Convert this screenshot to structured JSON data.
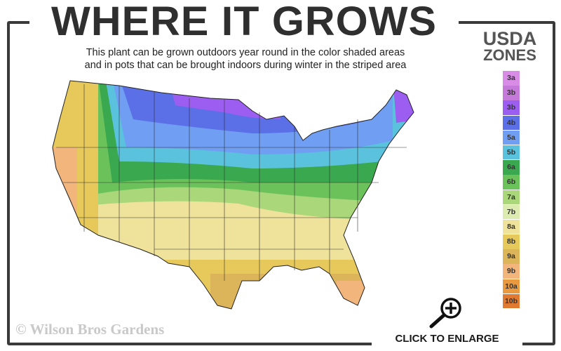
{
  "header": {
    "title": "WHERE IT GROWS",
    "subtitle_line1": "This plant can be grown outdoors year round in the color shaded areas",
    "subtitle_line2": "and in pots that can be brought indoors during winter in the striped area"
  },
  "legend": {
    "title_line1": "USDA",
    "title_line2": "ZONES",
    "zones": [
      {
        "label": "3a",
        "color": "#d98ce6"
      },
      {
        "label": "3b",
        "color": "#c57ad9"
      },
      {
        "label": "3b",
        "color": "#9b5ef0"
      },
      {
        "label": "4b",
        "color": "#5b6fe6"
      },
      {
        "label": "5a",
        "color": "#6f9ef2"
      },
      {
        "label": "5b",
        "color": "#5bc2de"
      },
      {
        "label": "6a",
        "color": "#3aa84e"
      },
      {
        "label": "6b",
        "color": "#6cc25a"
      },
      {
        "label": "7a",
        "color": "#a9d77a"
      },
      {
        "label": "7b",
        "color": "#dcebb0"
      },
      {
        "label": "8a",
        "color": "#efe29a"
      },
      {
        "label": "8b",
        "color": "#e6c95a"
      },
      {
        "label": "9a",
        "color": "#dcb55a"
      },
      {
        "label": "9b",
        "color": "#f2b57c"
      },
      {
        "label": "10a",
        "color": "#ea9a3e"
      },
      {
        "label": "10b",
        "color": "#e07a30"
      }
    ]
  },
  "footer": {
    "copyright": "© Wilson Bros Gardens",
    "enlarge_label": "CLICK TO ENLARGE",
    "enlarge_icon": "zoom-in-magnifier-icon"
  }
}
